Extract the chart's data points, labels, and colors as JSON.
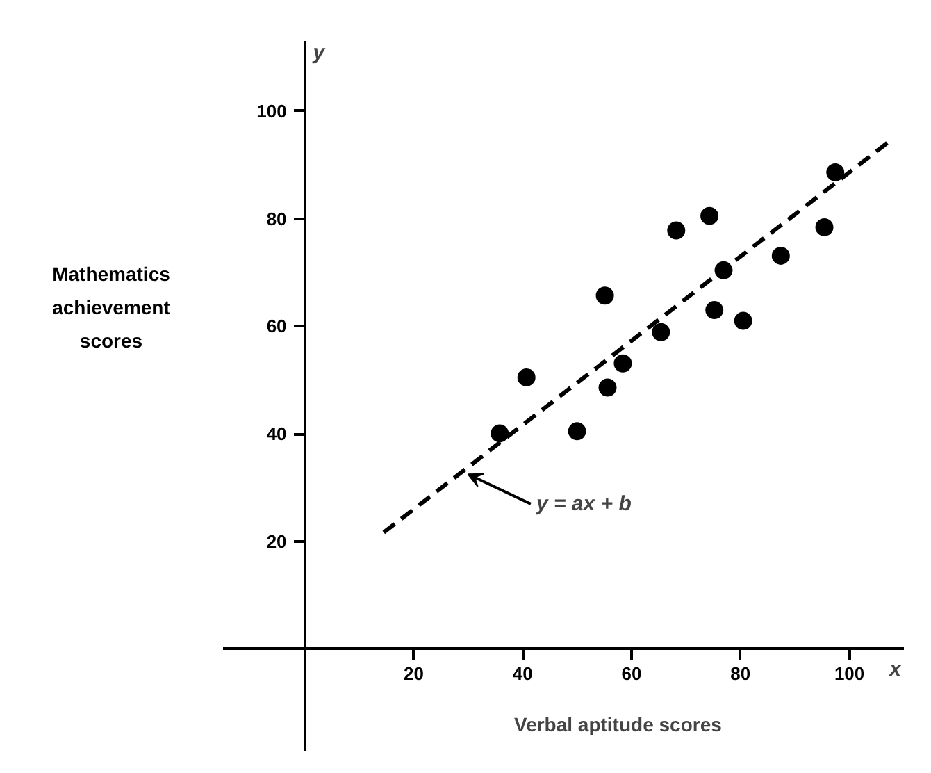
{
  "chart_data": {
    "type": "scatter",
    "xlabel": "Verbal aptitude scores",
    "ylabel": "Mathematics\nachievement\nscores",
    "xlim": [
      -15,
      110
    ],
    "ylim": [
      -19,
      113
    ],
    "xticks": [
      20,
      40,
      60,
      80,
      100
    ],
    "yticks": [
      20,
      40,
      60,
      80,
      100
    ],
    "grid": false,
    "series": [
      {
        "type": "scatter",
        "color": "#000000",
        "marker": "circle",
        "x": [
          35.8,
          40.7,
          50.0,
          55.1,
          55.6,
          58.4,
          65.4,
          68.2,
          74.3,
          75.2,
          76.9,
          80.5,
          87.4,
          95.4,
          97.4
        ],
        "values": [
          40.1,
          50.5,
          40.5,
          65.7,
          48.6,
          53.1,
          58.9,
          77.8,
          80.5,
          63.0,
          70.4,
          61.0,
          73.1,
          78.4,
          88.6
        ]
      },
      {
        "type": "line",
        "color": "#000000",
        "line_style": "dashed",
        "marker": "none",
        "x": [
          14.5,
          107
        ],
        "values": [
          21.7,
          94.1
        ]
      }
    ],
    "annotations": [
      {
        "text": "y = ax + b",
        "x": 29.5,
        "y": 33
      },
      "x",
      "y"
    ]
  }
}
